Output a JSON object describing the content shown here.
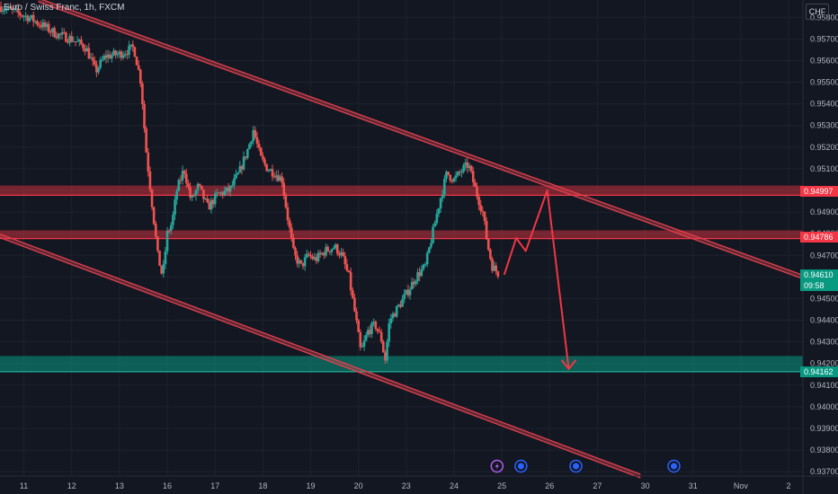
{
  "header": {
    "title": "Euro / Swiss Franc, 1h, FXCM",
    "currency": "CHF"
  },
  "colors": {
    "background": "#131722",
    "grid": "#1e222d",
    "up": "#26a69a",
    "down": "#ef5350",
    "resistance": "#f23645",
    "support": "#089981",
    "channel": "#e0414f",
    "projection": "#f23645"
  },
  "chart_data": {
    "type": "candlestick",
    "symbol": "EURCHF",
    "timeframe": "1h",
    "ylim": [
      0.9368,
      0.9588
    ],
    "y_ticks": [
      "0.95800",
      "0.95700",
      "0.95600",
      "0.95500",
      "0.95400",
      "0.95300",
      "0.95200",
      "0.95100",
      "0.95000",
      "0.94900",
      "0.94800",
      "0.94700",
      "0.94600",
      "0.94500",
      "0.94400",
      "0.94300",
      "0.94200",
      "0.94100",
      "0.94000",
      "0.93900",
      "0.93800",
      "0.93700"
    ],
    "x_ticks": [
      {
        "label": "11",
        "x": 0.5
      },
      {
        "label": "12",
        "x": 1.5
      },
      {
        "label": "13",
        "x": 2.5
      },
      {
        "label": "16",
        "x": 3.5
      },
      {
        "label": "17",
        "x": 4.5
      },
      {
        "label": "18",
        "x": 5.5
      },
      {
        "label": "19",
        "x": 6.5
      },
      {
        "label": "20",
        "x": 7.5
      },
      {
        "label": "23",
        "x": 8.5
      },
      {
        "label": "24",
        "x": 9.5
      },
      {
        "label": "25",
        "x": 10.5
      },
      {
        "label": "26",
        "x": 11.5
      },
      {
        "label": "27",
        "x": 12.5
      },
      {
        "label": "30",
        "x": 13.5
      },
      {
        "label": "31",
        "x": 14.5
      },
      {
        "label": "Nov",
        "x": 15.5
      },
      {
        "label": "2",
        "x": 16.5
      }
    ],
    "xlim": [
      0,
      16.8
    ],
    "series_close": [
      [
        0.0,
        0.9585
      ],
      [
        0.6,
        0.958
      ],
      [
        0.9,
        0.9576
      ],
      [
        1.2,
        0.9572
      ],
      [
        1.5,
        0.957
      ],
      [
        1.8,
        0.9566
      ],
      [
        2.0,
        0.9555
      ],
      [
        2.2,
        0.9562
      ],
      [
        2.5,
        0.9563
      ],
      [
        2.8,
        0.9566
      ],
      [
        2.95,
        0.955
      ],
      [
        3.05,
        0.952
      ],
      [
        3.15,
        0.95
      ],
      [
        3.3,
        0.947
      ],
      [
        3.4,
        0.946
      ],
      [
        3.5,
        0.948
      ],
      [
        3.6,
        0.9485
      ],
      [
        3.7,
        0.95
      ],
      [
        3.85,
        0.951
      ],
      [
        4.0,
        0.9495
      ],
      [
        4.15,
        0.9502
      ],
      [
        4.35,
        0.9492
      ],
      [
        4.55,
        0.9498
      ],
      [
        4.8,
        0.95
      ],
      [
        5.0,
        0.9508
      ],
      [
        5.2,
        0.952
      ],
      [
        5.3,
        0.9528
      ],
      [
        5.45,
        0.9515
      ],
      [
        5.6,
        0.951
      ],
      [
        5.75,
        0.9508
      ],
      [
        5.9,
        0.9505
      ],
      [
        6.0,
        0.949
      ],
      [
        6.15,
        0.947
      ],
      [
        6.3,
        0.9465
      ],
      [
        6.45,
        0.947
      ],
      [
        6.6,
        0.9468
      ],
      [
        6.8,
        0.9472
      ],
      [
        7.0,
        0.9474
      ],
      [
        7.15,
        0.947
      ],
      [
        7.3,
        0.946
      ],
      [
        7.45,
        0.944
      ],
      [
        7.55,
        0.9425
      ],
      [
        7.7,
        0.9435
      ],
      [
        7.85,
        0.9438
      ],
      [
        8.0,
        0.943
      ],
      [
        8.05,
        0.942
      ],
      [
        8.15,
        0.944
      ],
      [
        8.3,
        0.9445
      ],
      [
        8.5,
        0.9452
      ],
      [
        8.7,
        0.946
      ],
      [
        8.9,
        0.9465
      ],
      [
        9.0,
        0.9475
      ],
      [
        9.2,
        0.9495
      ],
      [
        9.35,
        0.9508
      ],
      [
        9.5,
        0.9505
      ],
      [
        9.7,
        0.951
      ],
      [
        9.8,
        0.9512
      ],
      [
        9.95,
        0.95
      ],
      [
        10.1,
        0.949
      ],
      [
        10.2,
        0.9475
      ],
      [
        10.3,
        0.9465
      ],
      [
        10.45,
        0.9461
      ]
    ],
    "resistance_zones": [
      {
        "label": "0.94997",
        "top": 0.9501,
        "bottom": 0.9499
      },
      {
        "label": "0.94786",
        "top": 0.94803,
        "bottom": 0.9479
      }
    ],
    "support_zone": {
      "label": "0.94162",
      "top": 0.94235,
      "bottom": 0.94162
    },
    "current_price": {
      "label": "0.94610",
      "countdown": "09:58"
    },
    "channel": {
      "upper": [
        [
          0.8,
          0.9588
        ],
        [
          16.8,
          0.946
        ]
      ],
      "lower": [
        [
          0.0,
          0.9479
        ],
        [
          13.4,
          0.9368
        ]
      ]
    },
    "projection_path": [
      [
        10.55,
        0.9461
      ],
      [
        10.8,
        0.9478
      ],
      [
        11.0,
        0.9472
      ],
      [
        11.45,
        0.95
      ],
      [
        11.9,
        0.94175
      ]
    ],
    "event_markers": [
      {
        "x": 10.4,
        "icon": "lightning-icon",
        "color": "#b45cf0"
      },
      {
        "x": 10.9,
        "icon": "flag-icon",
        "color": "#2962ff"
      },
      {
        "x": 12.05,
        "icon": "flag-icon",
        "color": "#2962ff"
      },
      {
        "x": 14.1,
        "icon": "flag-icon",
        "color": "#2962ff"
      }
    ]
  }
}
